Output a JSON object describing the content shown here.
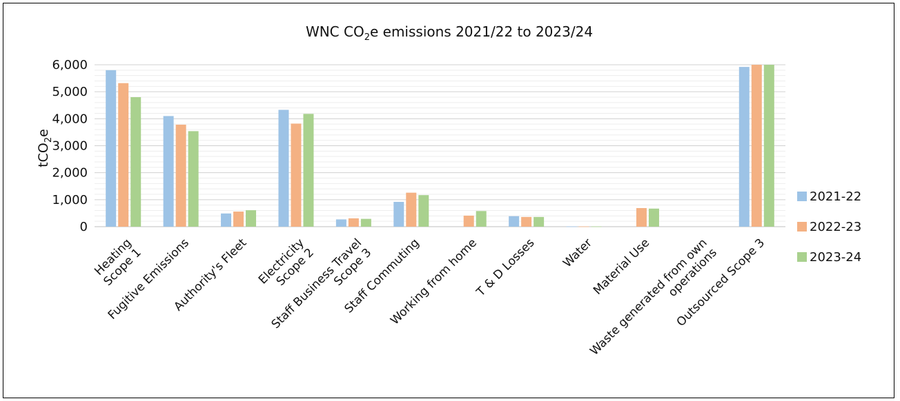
{
  "chart_data": {
    "type": "bar",
    "title_pre": "WNC CO",
    "title_sub": "2",
    "title_post": "e emissions 2021/22 to 2023/24",
    "ylabel_pre": "tCO",
    "ylabel_sub": "2",
    "ylabel_post": "e",
    "xlabel": "",
    "ylim": [
      0,
      6000
    ],
    "yticks": [
      "0",
      "1,000",
      "2,000",
      "3,000",
      "4,000",
      "5,000",
      "6,000"
    ],
    "grid": true,
    "legend_position": "right",
    "categories": [
      [
        "Heating",
        "Scope 1"
      ],
      [
        "Fugitive Emissions"
      ],
      [
        "Authority's Fleet"
      ],
      [
        "Electricity",
        "Scope 2"
      ],
      [
        "Staff Business Travel",
        "Scope 3"
      ],
      [
        "Staff Commuting"
      ],
      [
        "Working from home"
      ],
      [
        "T & D Losses"
      ],
      [
        "Water"
      ],
      [
        "Material Use"
      ],
      [
        "Waste generated from own",
        "operations"
      ],
      [
        "Outsourced Scope 3"
      ]
    ],
    "series": [
      {
        "name": "2021-22",
        "color": "#9dc3e6",
        "values": [
          5800,
          4100,
          490,
          4330,
          270,
          920,
          0,
          390,
          10,
          0,
          0,
          5920
        ]
      },
      {
        "name": "2022-23",
        "color": "#f4b183",
        "values": [
          5320,
          3780,
          560,
          3820,
          310,
          1260,
          410,
          360,
          10,
          690,
          0,
          6000
        ]
      },
      {
        "name": "2023-24",
        "color": "#a9d18e",
        "values": [
          4800,
          3540,
          610,
          4180,
          290,
          1170,
          580,
          360,
          10,
          670,
          0,
          6000
        ]
      }
    ]
  }
}
